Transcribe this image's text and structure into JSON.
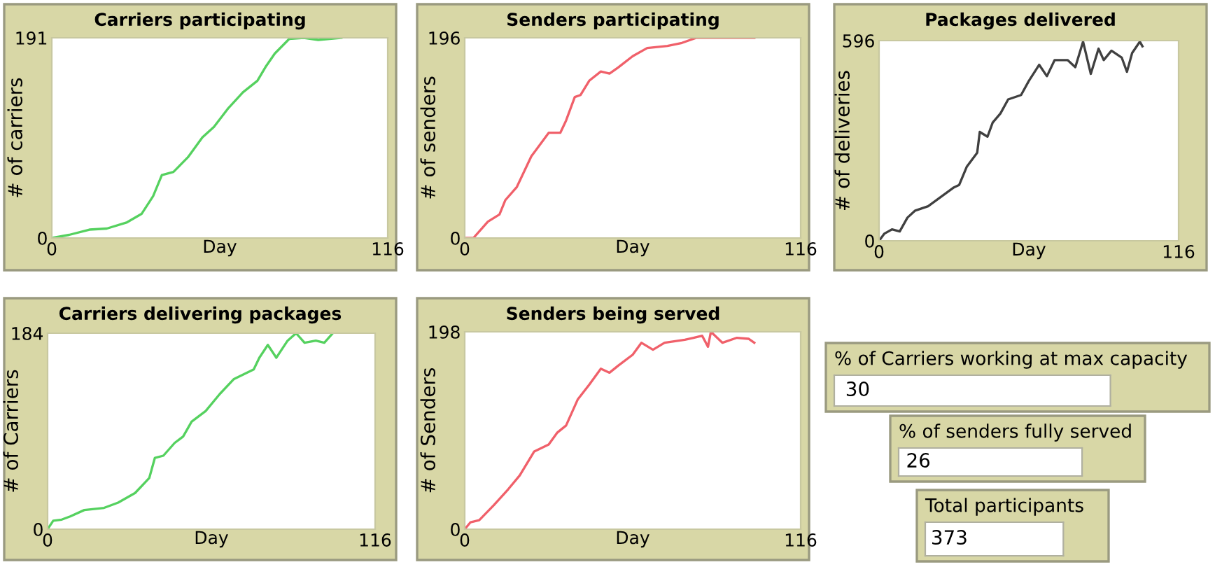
{
  "chart_data": [
    {
      "type": "line",
      "title": "Carriers participating",
      "xlabel": "Day",
      "ylabel": "# of carriers",
      "xlim": [
        0,
        116
      ],
      "ylim": [
        0,
        191
      ],
      "xticks": [
        0,
        116
      ],
      "yticks": [
        0,
        191
      ],
      "grid": false,
      "legend": false,
      "series": [
        {
          "color": "#55d15f",
          "x": [
            0,
            6,
            13,
            19,
            26,
            31,
            35,
            38,
            42,
            47,
            52,
            56,
            61,
            66,
            71,
            74,
            77,
            82,
            87,
            92,
            100
          ],
          "values": [
            0,
            3,
            8,
            9,
            15,
            23,
            40,
            60,
            63,
            77,
            96,
            106,
            124,
            139,
            150,
            164,
            176,
            190,
            191,
            189,
            191
          ]
        }
      ]
    },
    {
      "type": "line",
      "title": "Senders participating",
      "xlabel": "Day",
      "ylabel": "# of senders",
      "xlim": [
        0,
        116
      ],
      "ylim": [
        0,
        196
      ],
      "xticks": [
        0,
        116
      ],
      "yticks": [
        0,
        196
      ],
      "grid": false,
      "legend": false,
      "series": [
        {
          "color": "#f0606a",
          "x": [
            0,
            3,
            8,
            12,
            14,
            18,
            23,
            29,
            33,
            35,
            38,
            40,
            43,
            47,
            50,
            53,
            58,
            63,
            70,
            75,
            80,
            100
          ],
          "values": [
            0,
            0,
            16,
            23,
            37,
            50,
            80,
            103,
            103,
            115,
            138,
            140,
            154,
            163,
            161,
            167,
            178,
            186,
            188,
            191,
            196,
            196
          ]
        }
      ]
    },
    {
      "type": "line",
      "title": "Packages delivered",
      "xlabel": "Day",
      "ylabel": "# of deliveries",
      "xlim": [
        0,
        116
      ],
      "ylim": [
        0,
        596
      ],
      "xticks": [
        0,
        116
      ],
      "yticks": [
        0,
        596
      ],
      "grid": false,
      "legend": false,
      "series": [
        {
          "color": "#404040",
          "x": [
            0,
            2,
            5,
            8,
            11,
            14,
            19,
            24,
            29,
            31,
            34,
            38,
            39,
            42,
            44,
            47,
            50,
            55,
            58,
            62,
            65,
            68,
            73,
            76,
            79,
            82,
            85,
            87,
            90,
            94,
            96,
            98,
            101,
            102
          ],
          "values": [
            0,
            21,
            34,
            28,
            69,
            90,
            103,
            131,
            159,
            166,
            221,
            262,
            324,
            310,
            352,
            379,
            421,
            434,
            476,
            524,
            490,
            538,
            538,
            517,
            593,
            497,
            572,
            538,
            566,
            545,
            503,
            559,
            593,
            579
          ]
        }
      ]
    },
    {
      "type": "line",
      "title": "Carriers delivering packages",
      "xlabel": "Day",
      "ylabel": "# of Carriers",
      "xlim": [
        0,
        116
      ],
      "ylim": [
        0,
        184
      ],
      "xticks": [
        0,
        116
      ],
      "yticks": [
        0,
        184
      ],
      "grid": false,
      "legend": false,
      "series": [
        {
          "color": "#55d15f",
          "x": [
            0,
            2,
            5,
            8,
            13,
            20,
            25,
            31,
            36,
            38,
            41,
            45,
            48,
            51,
            56,
            61,
            66,
            73,
            75,
            78,
            81,
            85,
            88,
            91,
            95,
            98,
            101
          ],
          "values": [
            0,
            8,
            9,
            12,
            18,
            20,
            25,
            34,
            48,
            67,
            69,
            81,
            87,
            101,
            111,
            127,
            141,
            150,
            161,
            173,
            161,
            177,
            184,
            175,
            177,
            175,
            184
          ]
        }
      ]
    },
    {
      "type": "line",
      "title": "Senders being served",
      "xlabel": "Day",
      "ylabel": "# of Senders",
      "xlim": [
        0,
        116
      ],
      "ylim": [
        0,
        198
      ],
      "xticks": [
        0,
        116
      ],
      "yticks": [
        0,
        198
      ],
      "grid": false,
      "legend": false,
      "series": [
        {
          "color": "#f0606a",
          "x": [
            0,
            2,
            5,
            10,
            15,
            19,
            24,
            29,
            32,
            35,
            39,
            43,
            47,
            50,
            53,
            58,
            61,
            65,
            69,
            76,
            79,
            82,
            84,
            85,
            89,
            94,
            98,
            100
          ],
          "values": [
            0,
            7,
            9,
            24,
            40,
            54,
            78,
            85,
            97,
            104,
            130,
            145,
            161,
            157,
            164,
            175,
            187,
            180,
            187,
            190,
            192,
            194,
            183,
            198,
            187,
            192,
            191,
            187
          ]
        }
      ]
    },
    {
      "type": "other",
      "title": "% of Carriers working at max capacity",
      "annotations": [
        "30"
      ]
    },
    {
      "type": "other",
      "title": "% of senders fully served",
      "annotations": [
        "26"
      ]
    },
    {
      "type": "other",
      "title": "Total participants",
      "annotations": [
        "373"
      ]
    }
  ]
}
